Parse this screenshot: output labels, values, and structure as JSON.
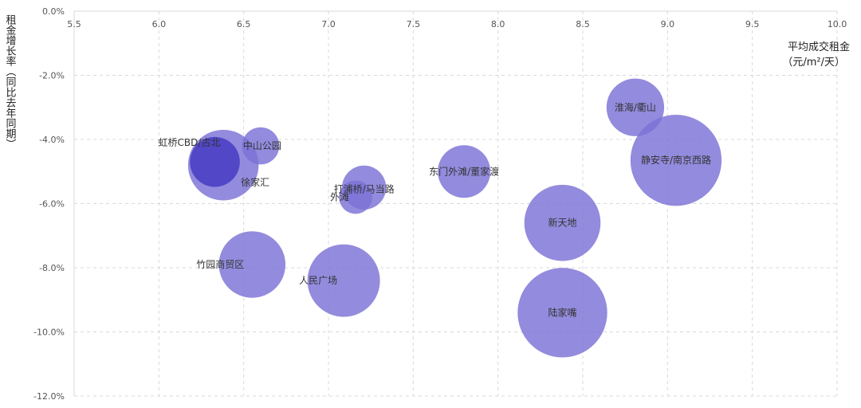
{
  "chart_data": {
    "type": "bubble",
    "xlabel_lines": [
      "平均成交租金",
      "（元/m²/天）"
    ],
    "ylabel": "租金增长率（同比去年同期）",
    "xlim": [
      5.5,
      10.0
    ],
    "ylim": [
      -12.0,
      0.0
    ],
    "x_ticks": [
      "5.5",
      "6.0",
      "6.5",
      "7.0",
      "7.5",
      "8.0",
      "8.5",
      "9.0",
      "9.5",
      "10.0"
    ],
    "y_ticks": [
      "0.0%",
      "-2.0%",
      "-4.0%",
      "-6.0%",
      "-8.0%",
      "-10.0%",
      "-12.0%"
    ],
    "grid": true,
    "bubble_color": "#7b72d6",
    "bubble_highlight_color": "#4a3fc4",
    "points": [
      {
        "label": "虹桥CBD/古北",
        "x": 6.33,
        "y": -4.7,
        "size": 0.9,
        "highlight": true
      },
      {
        "label": "徐家汇",
        "x": 6.38,
        "y": -4.8,
        "size": 1.8,
        "highlight": false
      },
      {
        "label": "中山公园",
        "x": 6.6,
        "y": -4.2,
        "size": 0.5,
        "highlight": false
      },
      {
        "label": "打浦桥/马当路",
        "x": 7.21,
        "y": -5.5,
        "size": 0.7,
        "highlight": false
      },
      {
        "label": "外滩",
        "x": 7.16,
        "y": -5.8,
        "size": 0.4,
        "highlight": false
      },
      {
        "label": "东门外滩/董家渡",
        "x": 7.8,
        "y": -5.0,
        "size": 1.0,
        "highlight": false
      },
      {
        "label": "淮海/衢山",
        "x": 8.81,
        "y": -3.0,
        "size": 1.2,
        "highlight": false
      },
      {
        "label": "静安寺/南京西路",
        "x": 9.05,
        "y": -4.65,
        "size": 3.0,
        "highlight": false
      },
      {
        "label": "新天地",
        "x": 8.38,
        "y": -6.6,
        "size": 2.1,
        "highlight": false
      },
      {
        "label": "竹园商贸区",
        "x": 6.55,
        "y": -7.9,
        "size": 1.6,
        "highlight": false
      },
      {
        "label": "人民广场",
        "x": 7.09,
        "y": -8.4,
        "size": 1.9,
        "highlight": false
      },
      {
        "label": "陆家嘴",
        "x": 8.38,
        "y": -9.4,
        "size": 2.9,
        "highlight": false
      }
    ]
  }
}
